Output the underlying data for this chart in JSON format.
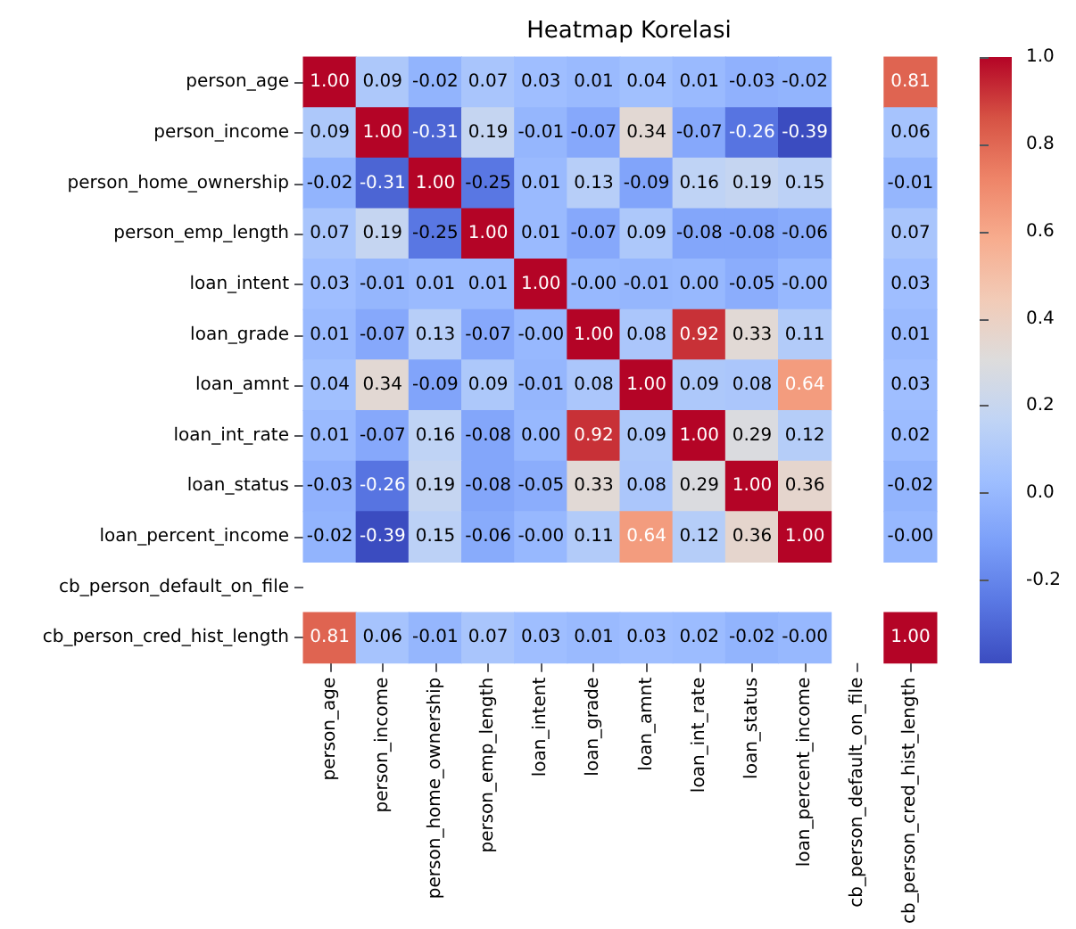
{
  "chart_data": {
    "type": "heatmap",
    "title": "Heatmap Korelasi",
    "categories": [
      "person_age",
      "person_income",
      "person_home_ownership",
      "person_emp_length",
      "loan_intent",
      "loan_grade",
      "loan_amnt",
      "loan_int_rate",
      "loan_status",
      "loan_percent_income",
      "cb_person_default_on_file",
      "cb_person_cred_hist_length"
    ],
    "y_categories": [
      "person_age",
      "person_income",
      "person_home_ownership",
      "person_emp_length",
      "loan_intent",
      "loan_grade",
      "loan_amnt",
      "loan_int_rate",
      "loan_status",
      "loan_percent_income",
      "cb_person_default_on_file",
      "cb_person_cred_hist_length"
    ],
    "cells": [
      [
        1.0,
        0.09,
        -0.02,
        0.07,
        0.03,
        0.01,
        0.04,
        0.01,
        -0.03,
        -0.02,
        null,
        0.81
      ],
      [
        0.09,
        1.0,
        -0.31,
        0.19,
        -0.01,
        -0.07,
        0.34,
        -0.07,
        -0.26,
        -0.39,
        null,
        0.06
      ],
      [
        -0.02,
        -0.31,
        1.0,
        -0.25,
        0.01,
        0.13,
        -0.09,
        0.16,
        0.19,
        0.15,
        null,
        -0.01
      ],
      [
        0.07,
        0.19,
        -0.25,
        1.0,
        0.01,
        -0.07,
        0.09,
        -0.08,
        -0.08,
        -0.06,
        null,
        0.07
      ],
      [
        0.03,
        -0.01,
        0.01,
        0.01,
        1.0,
        0,
        -0.01,
        0,
        -0.05,
        0,
        null,
        0.03
      ],
      [
        0.01,
        -0.07,
        0.13,
        -0.07,
        0,
        1.0,
        0.08,
        0.92,
        0.33,
        0.11,
        null,
        0.01
      ],
      [
        0.04,
        0.34,
        -0.09,
        0.09,
        -0.01,
        0.08,
        1.0,
        0.09,
        0.08,
        0.64,
        null,
        0.03
      ],
      [
        0.01,
        -0.07,
        0.16,
        -0.08,
        0,
        0.92,
        0.09,
        1.0,
        0.29,
        0.12,
        null,
        0.02
      ],
      [
        -0.03,
        -0.26,
        0.19,
        -0.08,
        -0.05,
        0.33,
        0.08,
        0.29,
        1.0,
        0.36,
        null,
        -0.02
      ],
      [
        -0.02,
        -0.39,
        0.15,
        -0.06,
        0,
        0.11,
        0.64,
        0.12,
        0.36,
        1.0,
        null,
        0
      ],
      [
        null,
        null,
        null,
        null,
        null,
        null,
        null,
        null,
        null,
        null,
        null,
        null
      ],
      [
        0.81,
        0.06,
        -0.01,
        0.07,
        0.03,
        0.01,
        0.03,
        0.02,
        -0.02,
        0,
        null,
        1.0
      ]
    ],
    "cell_labels": [
      [
        "1.00",
        "0.09",
        "-0.02",
        "0.07",
        "0.03",
        "0.01",
        "0.04",
        "0.01",
        "-0.03",
        "-0.02",
        null,
        "0.81"
      ],
      [
        "0.09",
        "1.00",
        "-0.31",
        "0.19",
        "-0.01",
        "-0.07",
        "0.34",
        "-0.07",
        "-0.26",
        "-0.39",
        null,
        "0.06"
      ],
      [
        "-0.02",
        "-0.31",
        "1.00",
        "-0.25",
        "0.01",
        "0.13",
        "-0.09",
        "0.16",
        "0.19",
        "0.15",
        null,
        "-0.01"
      ],
      [
        "0.07",
        "0.19",
        "-0.25",
        "1.00",
        "0.01",
        "-0.07",
        "0.09",
        "-0.08",
        "-0.08",
        "-0.06",
        null,
        "0.07"
      ],
      [
        "0.03",
        "-0.01",
        "0.01",
        "0.01",
        "1.00",
        "-0.00",
        "-0.01",
        "0.00",
        "-0.05",
        "-0.00",
        null,
        "0.03"
      ],
      [
        "0.01",
        "-0.07",
        "0.13",
        "-0.07",
        "-0.00",
        "1.00",
        "0.08",
        "0.92",
        "0.33",
        "0.11",
        null,
        "0.01"
      ],
      [
        "0.04",
        "0.34",
        "-0.09",
        "0.09",
        "-0.01",
        "0.08",
        "1.00",
        "0.09",
        "0.08",
        "0.64",
        null,
        "0.03"
      ],
      [
        "0.01",
        "-0.07",
        "0.16",
        "-0.08",
        "0.00",
        "0.92",
        "0.09",
        "1.00",
        "0.29",
        "0.12",
        null,
        "0.02"
      ],
      [
        "-0.03",
        "-0.26",
        "0.19",
        "-0.08",
        "-0.05",
        "0.33",
        "0.08",
        "0.29",
        "1.00",
        "0.36",
        null,
        "-0.02"
      ],
      [
        "-0.02",
        "-0.39",
        "0.15",
        "-0.06",
        "-0.00",
        "0.11",
        "0.64",
        "0.12",
        "0.36",
        "1.00",
        null,
        "-0.00"
      ],
      [
        null,
        null,
        null,
        null,
        null,
        null,
        null,
        null,
        null,
        null,
        null,
        null
      ],
      [
        "0.81",
        "0.06",
        "-0.01",
        "0.07",
        "0.03",
        "0.01",
        "0.03",
        "0.02",
        "-0.02",
        "-0.00",
        null,
        "1.00"
      ]
    ],
    "data_labels": true,
    "clim": [
      -0.39,
      1.0
    ],
    "cticks": [
      {
        "value": -0.2,
        "label": "-0.2"
      },
      {
        "value": 0,
        "label": "0.0"
      },
      {
        "value": 0.2,
        "label": "0.2"
      },
      {
        "value": 0.4,
        "label": "0.4"
      },
      {
        "value": 0.6,
        "label": "0.6"
      },
      {
        "value": 0.8,
        "label": "0.8"
      },
      {
        "value": 1.0,
        "label": "1.0"
      }
    ]
  }
}
